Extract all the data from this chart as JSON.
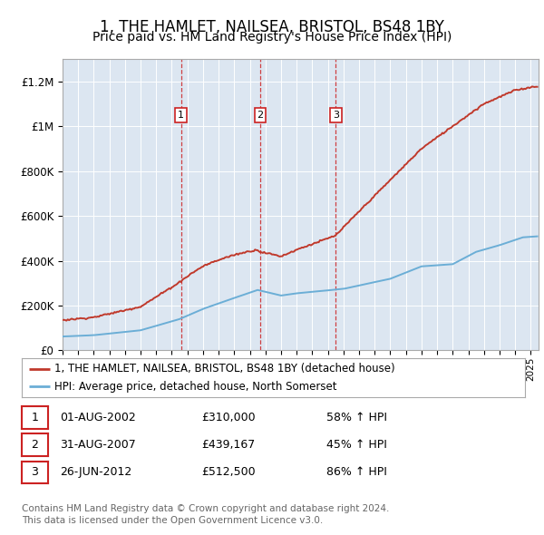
{
  "title": "1, THE HAMLET, NAILSEA, BRISTOL, BS48 1BY",
  "subtitle": "Price paid vs. HM Land Registry's House Price Index (HPI)",
  "title_fontsize": 12,
  "subtitle_fontsize": 10,
  "background_color": "#ffffff",
  "plot_bg_color": "#dce6f1",
  "grid_color": "#ffffff",
  "ylim": [
    0,
    1300000
  ],
  "yticks": [
    0,
    200000,
    400000,
    600000,
    800000,
    1000000,
    1200000
  ],
  "ytick_labels": [
    "£0",
    "£200K",
    "£400K",
    "£600K",
    "£800K",
    "£1M",
    "£1.2M"
  ],
  "hpi_line_color": "#6baed6",
  "price_line_color": "#c0392b",
  "hpi_anchors_x": [
    0.0,
    2.0,
    5.0,
    7.5,
    9.0,
    12.5,
    14.0,
    15.0,
    18.0,
    21.0,
    23.0,
    25.0,
    26.5,
    28.0,
    29.5,
    30.5
  ],
  "hpi_anchors_y": [
    62000,
    68000,
    90000,
    140000,
    185000,
    270000,
    245000,
    255000,
    275000,
    320000,
    375000,
    385000,
    440000,
    470000,
    505000,
    510000
  ],
  "t1_x": 7.583,
  "t1_price": 310000,
  "t2_x": 12.667,
  "t2_price": 439167,
  "t3_x": 17.5,
  "t3_price": 512500,
  "transactions": [
    {
      "label": "1",
      "date": "01-AUG-2002",
      "price": "£310,000",
      "hpi_change": "58% ↑ HPI",
      "x": 7.583
    },
    {
      "label": "2",
      "date": "31-AUG-2007",
      "price": "£439,167",
      "hpi_change": "45% ↑ HPI",
      "x": 12.667
    },
    {
      "label": "3",
      "date": "26-JUN-2012",
      "price": "£512,500",
      "hpi_change": "86% ↑ HPI",
      "x": 17.5
    }
  ],
  "legend_label_price": "1, THE HAMLET, NAILSEA, BRISTOL, BS48 1BY (detached house)",
  "legend_label_hpi": "HPI: Average price, detached house, North Somerset",
  "footer_line1": "Contains HM Land Registry data © Crown copyright and database right 2024.",
  "footer_line2": "This data is licensed under the Open Government Licence v3.0.",
  "xstart_year": 1995,
  "xend_year": 2025,
  "xlim": [
    0,
    30.5
  ]
}
